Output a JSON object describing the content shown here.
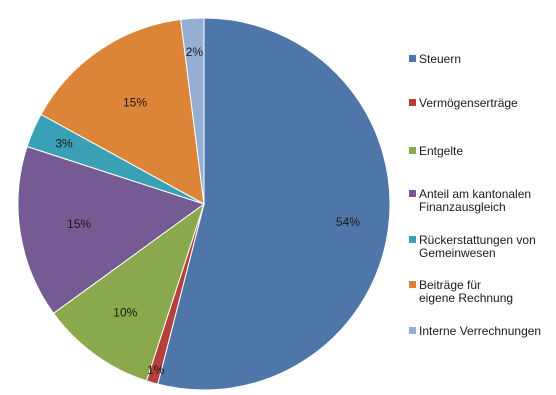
{
  "chart_data": {
    "type": "pie",
    "slices": [
      {
        "label": "Steuern",
        "value": 54,
        "display": "54%",
        "color": "#4f76a8"
      },
      {
        "label": "Vermögenserträge",
        "value": 1,
        "display": "1%",
        "color": "#b3403a"
      },
      {
        "label": "Entgelte",
        "value": 10,
        "display": "10%",
        "color": "#8aa84c"
      },
      {
        "label": "Anteil am kantonalen Finanzausgleich",
        "value": 15,
        "display": "15%",
        "color": "#765a94"
      },
      {
        "label": "Rückerstattungen von Gemeinwesen",
        "value": 3,
        "display": "3%",
        "color": "#3aa0b5"
      },
      {
        "label": "Beiträge für eigene Rechnung",
        "value": 15,
        "display": "15%",
        "color": "#dc8538"
      },
      {
        "label": "Interne Verrechnungen",
        "value": 2,
        "display": "2%",
        "color": "#94aed4"
      }
    ],
    "legend": {
      "position": "right",
      "entries": [
        {
          "lines": [
            "Steuern"
          ]
        },
        {
          "lines": [
            "Vermögenserträge"
          ]
        },
        {
          "lines": [
            "Entgelte"
          ]
        },
        {
          "lines": [
            "Anteil am kantonalen",
            "Finanzausgleich"
          ]
        },
        {
          "lines": [
            "Rückerstattungen von",
            "Gemeinwesen"
          ]
        },
        {
          "lines": [
            "Beiträge für",
            "eigene Rechnung"
          ]
        },
        {
          "lines": [
            "Interne Verrechnungen"
          ]
        }
      ]
    },
    "start_angle_deg": 0,
    "direction": "clockwise"
  }
}
